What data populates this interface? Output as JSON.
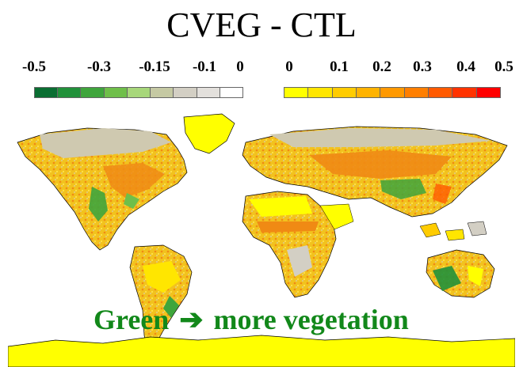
{
  "title": "CVEG - CTL",
  "legend_negative": {
    "tick_labels": [
      "-0.5",
      "-0.3",
      "-0.15",
      "-0.1",
      "0"
    ],
    "colors": [
      "#0a6e32",
      "#21913a",
      "#3fa53c",
      "#6fbf4a",
      "#a7d77a",
      "#c5c9a3",
      "#d3cfc4",
      "#e3e0dc",
      "#ffffff"
    ]
  },
  "legend_positive": {
    "tick_labels": [
      "0",
      "0.1",
      "0.2",
      "0.3",
      "0.4",
      "0.5"
    ],
    "colors": [
      "#ffff00",
      "#ffe600",
      "#ffcc00",
      "#ffb300",
      "#ff9900",
      "#ff7f00",
      "#ff5a00",
      "#ff3300",
      "#ff0000"
    ]
  },
  "caption": {
    "left": "Green",
    "arrow": "➔",
    "right": "more vegetation"
  },
  "colors": {
    "caption": "#12881a",
    "antarctica": "#ffff00",
    "coast": "#000000"
  }
}
